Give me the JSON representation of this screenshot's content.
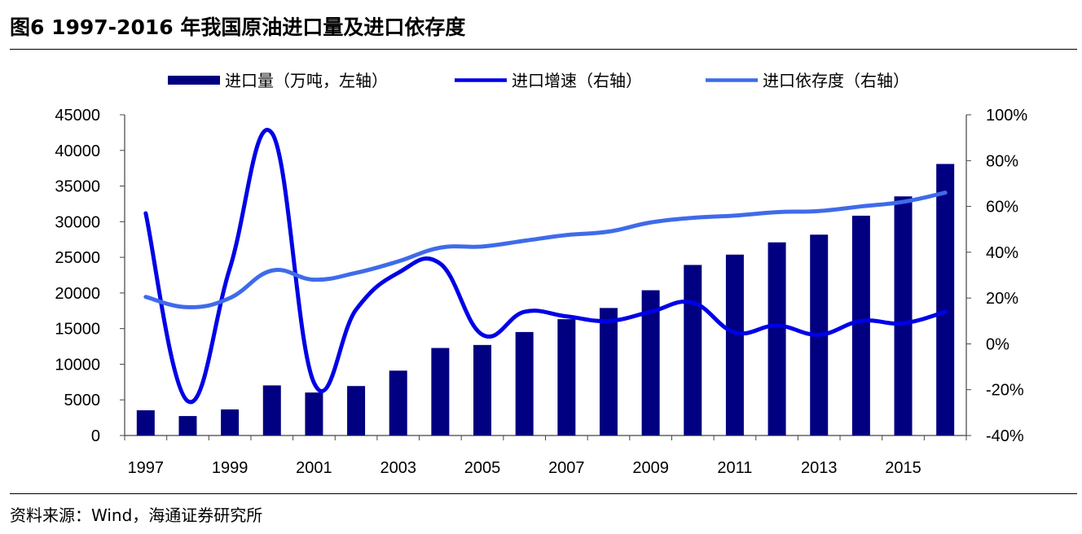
{
  "header": {
    "title": "图6   1997-2016 年我国原油进口量及进口依存度"
  },
  "footer": {
    "source": "资料来源：Wind，海通证券研究所"
  },
  "chart_data": {
    "type": "bar",
    "title": "",
    "x": [
      1997,
      1998,
      1999,
      2000,
      2001,
      2002,
      2003,
      2004,
      2005,
      2006,
      2007,
      2008,
      2009,
      2010,
      2011,
      2012,
      2013,
      2014,
      2015,
      2016
    ],
    "x_tick_labels": [
      "1997",
      "1999",
      "2001",
      "2003",
      "2005",
      "2007",
      "2009",
      "2011",
      "2013",
      "2015"
    ],
    "y_left": {
      "ylim": [
        0,
        45000
      ],
      "ticks": [
        0,
        5000,
        10000,
        15000,
        20000,
        25000,
        30000,
        35000,
        40000,
        45000
      ]
    },
    "y_right": {
      "ylim": [
        -40,
        100
      ],
      "ticks": [
        -40,
        -20,
        0,
        20,
        40,
        60,
        80,
        100
      ],
      "tick_labels": [
        "-40%",
        "-20%",
        "0%",
        "20%",
        "40%",
        "60%",
        "80%",
        "100%"
      ]
    },
    "legend_position": "top",
    "series": [
      {
        "name": "进口量（万吨，左轴）",
        "type": "bar",
        "axis": "left",
        "color": "#000080",
        "values": [
          3540,
          2730,
          3660,
          7030,
          6030,
          6940,
          9100,
          12280,
          12700,
          14520,
          16320,
          17890,
          20380,
          23930,
          25380,
          27100,
          28180,
          30840,
          33550,
          38100
        ]
      },
      {
        "name": "进口增速（右轴）",
        "type": "line",
        "axis": "right",
        "color": "#0000E6",
        "values": [
          57,
          -25,
          33,
          92,
          -17,
          15,
          31,
          35,
          4,
          14,
          12,
          10,
          14,
          18,
          5,
          8,
          4,
          10,
          9,
          14
        ]
      },
      {
        "name": "进口依存度（右轴）",
        "type": "line",
        "axis": "right",
        "color": "#3F6BEA",
        "values": [
          20.5,
          16,
          20,
          32,
          28,
          31,
          36,
          42,
          42.5,
          45,
          47.5,
          49,
          53,
          55,
          56,
          57.5,
          58,
          60,
          62,
          66
        ]
      }
    ]
  }
}
